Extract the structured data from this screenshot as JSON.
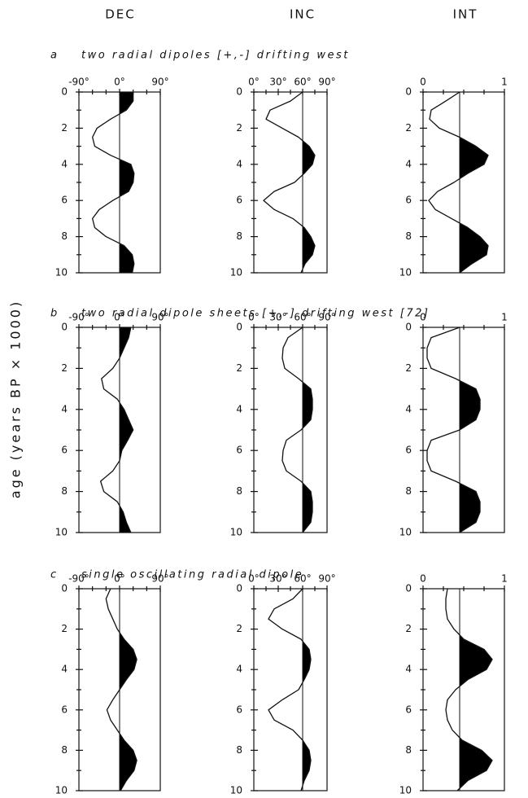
{
  "columns": [
    "DEC",
    "INC",
    "INT"
  ],
  "ylabel": "age (years BP × 1000)",
  "chart_data": [
    {
      "type": "line",
      "label": "a",
      "title": "two radial dipoles [+,-] drifting west",
      "x": [
        0,
        0.5,
        1,
        1.5,
        2,
        2.5,
        3,
        3.5,
        4,
        4.5,
        5,
        5.5,
        6,
        6.5,
        7,
        7.5,
        8,
        8.5,
        9,
        9.5,
        10
      ],
      "values": [
        30,
        30,
        15,
        -20,
        -50,
        -60,
        -55,
        -20,
        25,
        32,
        30,
        20,
        -15,
        -45,
        -60,
        -55,
        -30,
        10,
        28,
        32,
        28
      ],
      "reference": 0,
      "xlim": [
        0,
        10
      ],
      "xticks": [
        0,
        2,
        4,
        6,
        8,
        10
      ],
      "xminorticks": [
        1,
        3,
        5,
        7,
        9
      ],
      "ylim": [
        -90,
        90
      ],
      "yticks": [
        {
          "value": -90,
          "label": "-90°"
        },
        {
          "value": 0,
          "label": "0°"
        },
        {
          "value": 90,
          "label": "90°"
        }
      ],
      "yminorticks": [
        -60,
        -30,
        30,
        60
      ]
    },
    {
      "type": "line",
      "x": [
        0,
        0.5,
        1,
        1.5,
        2,
        2.5,
        3,
        3.5,
        4,
        4.5,
        5,
        5.5,
        6,
        6.5,
        7,
        7.5,
        8,
        8.5,
        9,
        9.5,
        10
      ],
      "values": [
        60,
        45,
        20,
        15,
        35,
        55,
        68,
        75,
        72,
        62,
        50,
        25,
        12,
        25,
        48,
        62,
        70,
        75,
        72,
        63,
        58
      ],
      "reference": 60,
      "xlim": [
        0,
        10
      ],
      "xticks": [
        0,
        2,
        4,
        6,
        8,
        10
      ],
      "xminorticks": [
        1,
        3,
        5,
        7,
        9
      ],
      "ylim": [
        0,
        90
      ],
      "yticks": [
        {
          "value": 0,
          "label": "0°"
        },
        {
          "value": 30,
          "label": "30°"
        },
        {
          "value": 60,
          "label": "60°"
        },
        {
          "value": 90,
          "label": "90°"
        }
      ],
      "yminorticks": [
        15,
        45,
        75
      ]
    },
    {
      "type": "line",
      "x": [
        0,
        0.5,
        1,
        1.5,
        2,
        2.5,
        3,
        3.5,
        4,
        4.5,
        5,
        5.5,
        6,
        6.5,
        7,
        7.5,
        8,
        8.5,
        9,
        9.5,
        10
      ],
      "values": [
        0.45,
        0.28,
        0.1,
        0.08,
        0.2,
        0.45,
        0.65,
        0.8,
        0.75,
        0.55,
        0.38,
        0.18,
        0.07,
        0.15,
        0.35,
        0.55,
        0.7,
        0.8,
        0.78,
        0.6,
        0.45
      ],
      "reference": 0.45,
      "xlim": [
        0,
        10
      ],
      "xticks": [
        0,
        2,
        4,
        6,
        8,
        10
      ],
      "xminorticks": [
        1,
        3,
        5,
        7,
        9
      ],
      "ylim": [
        0,
        1
      ],
      "yticks": [
        0,
        1
      ],
      "yminorticks": [
        0.25,
        0.5,
        0.75
      ]
    },
    {
      "type": "line",
      "label": "b",
      "title": "two radial dipole sheets [+,-] drifting west [72]",
      "x": [
        0,
        0.5,
        1,
        1.5,
        2,
        2.5,
        3,
        3.5,
        4,
        4.5,
        5,
        5.5,
        6,
        6.5,
        7,
        7.5,
        8,
        8.5,
        9,
        9.5,
        10
      ],
      "values": [
        25,
        20,
        10,
        0,
        -15,
        -40,
        -35,
        -5,
        10,
        20,
        30,
        18,
        5,
        0,
        -15,
        -42,
        -35,
        -5,
        8,
        15,
        25
      ],
      "reference": 0,
      "xlim": [
        0,
        10
      ],
      "xticks": [
        0,
        2,
        4,
        6,
        8,
        10
      ],
      "xminorticks": [
        1,
        3,
        5,
        7,
        9
      ],
      "ylim": [
        -90,
        90
      ],
      "yticks": [
        {
          "value": -90,
          "label": "-90°"
        },
        {
          "value": 0,
          "label": "0°"
        },
        {
          "value": 90,
          "label": "90°"
        }
      ],
      "yminorticks": [
        -60,
        -30,
        30,
        60
      ]
    },
    {
      "type": "line",
      "x": [
        0,
        0.5,
        1,
        1.5,
        2,
        2.5,
        3,
        3.5,
        4,
        4.5,
        5,
        5.5,
        6,
        6.5,
        7,
        7.5,
        8,
        8.5,
        9,
        9.5,
        10
      ],
      "values": [
        60,
        42,
        36,
        35,
        38,
        55,
        70,
        72,
        72,
        70,
        58,
        40,
        36,
        35,
        40,
        58,
        70,
        72,
        72,
        70,
        60
      ],
      "reference": 60,
      "xlim": [
        0,
        10
      ],
      "xticks": [
        0,
        2,
        4,
        6,
        8,
        10
      ],
      "xminorticks": [
        1,
        3,
        5,
        7,
        9
      ],
      "ylim": [
        0,
        90
      ],
      "yticks": [
        {
          "value": 0,
          "label": "0°"
        },
        {
          "value": 30,
          "label": "30°"
        },
        {
          "value": 60,
          "label": "60°"
        },
        {
          "value": 90,
          "label": "90°"
        }
      ],
      "yminorticks": [
        15,
        45,
        75
      ]
    },
    {
      "type": "line",
      "x": [
        0,
        0.5,
        1,
        1.5,
        2,
        2.5,
        3,
        3.5,
        4,
        4.5,
        5,
        5.5,
        6,
        6.5,
        7,
        7.5,
        8,
        8.5,
        9,
        9.5,
        10
      ],
      "values": [
        0.45,
        0.1,
        0.05,
        0.05,
        0.1,
        0.4,
        0.65,
        0.7,
        0.7,
        0.65,
        0.45,
        0.1,
        0.05,
        0.05,
        0.1,
        0.4,
        0.65,
        0.7,
        0.7,
        0.65,
        0.45
      ],
      "reference": 0.45,
      "xlim": [
        0,
        10
      ],
      "xticks": [
        0,
        2,
        4,
        6,
        8,
        10
      ],
      "xminorticks": [
        1,
        3,
        5,
        7,
        9
      ],
      "ylim": [
        0,
        1
      ],
      "yticks": [
        0,
        1
      ],
      "yminorticks": [
        0.25,
        0.5,
        0.75
      ]
    },
    {
      "type": "line",
      "label": "c",
      "title": "single oscillating radial dipole",
      "x": [
        0,
        0.5,
        1,
        1.5,
        2,
        2.5,
        3,
        3.5,
        4,
        4.5,
        5,
        5.5,
        6,
        6.5,
        7,
        7.5,
        8,
        8.5,
        9,
        9.5,
        10
      ],
      "values": [
        -20,
        -30,
        -25,
        -15,
        -5,
        10,
        30,
        38,
        32,
        15,
        0,
        -15,
        -28,
        -20,
        -5,
        10,
        30,
        38,
        32,
        15,
        2
      ],
      "reference": 0,
      "xlim": [
        0,
        10
      ],
      "xticks": [
        0,
        2,
        4,
        6,
        8,
        10
      ],
      "xminorticks": [
        1,
        3,
        5,
        7,
        9
      ],
      "ylim": [
        -90,
        90
      ],
      "yticks": [
        {
          "value": -90,
          "label": "-90°"
        },
        {
          "value": 0,
          "label": "0°"
        },
        {
          "value": 90,
          "label": "90°"
        }
      ],
      "yminorticks": [
        -60,
        -30,
        30,
        60
      ]
    },
    {
      "type": "line",
      "x": [
        0,
        0.5,
        1,
        1.5,
        2,
        2.5,
        3,
        3.5,
        4,
        4.5,
        5,
        5.5,
        6,
        6.5,
        7,
        7.5,
        8,
        8.5,
        9,
        9.5,
        10
      ],
      "values": [
        60,
        48,
        25,
        18,
        35,
        58,
        68,
        70,
        68,
        62,
        55,
        35,
        18,
        25,
        48,
        60,
        68,
        70,
        68,
        62,
        58
      ],
      "reference": 60,
      "xlim": [
        0,
        10
      ],
      "xticks": [
        0,
        2,
        4,
        6,
        8,
        10
      ],
      "xminorticks": [
        1,
        3,
        5,
        7,
        9
      ],
      "ylim": [
        0,
        90
      ],
      "yticks": [
        {
          "value": 0,
          "label": "0°"
        },
        {
          "value": 30,
          "label": "30°"
        },
        {
          "value": 60,
          "label": "60°"
        },
        {
          "value": 90,
          "label": "90°"
        }
      ],
      "yminorticks": [
        15,
        45,
        75
      ]
    },
    {
      "type": "line",
      "x": [
        0,
        0.5,
        1,
        1.5,
        2,
        2.5,
        3,
        3.5,
        4,
        4.5,
        5,
        5.5,
        6,
        6.5,
        7,
        7.5,
        8,
        8.5,
        9,
        9.5,
        10
      ],
      "values": [
        0.3,
        0.28,
        0.28,
        0.3,
        0.38,
        0.5,
        0.75,
        0.85,
        0.78,
        0.55,
        0.4,
        0.3,
        0.28,
        0.3,
        0.36,
        0.48,
        0.72,
        0.85,
        0.78,
        0.55,
        0.42
      ],
      "reference": 0.45,
      "xlim": [
        0,
        10
      ],
      "xticks": [
        0,
        2,
        4,
        6,
        8,
        10
      ],
      "xminorticks": [
        1,
        3,
        5,
        7,
        9
      ],
      "ylim": [
        0,
        1
      ],
      "yticks": [
        0,
        1
      ],
      "yminorticks": [
        0.25,
        0.5,
        0.75
      ]
    }
  ]
}
